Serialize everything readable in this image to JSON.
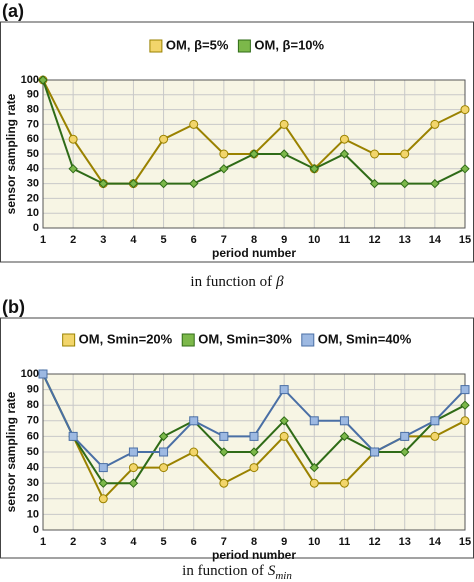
{
  "chart_data": [
    {
      "type": "line",
      "label": "(a)",
      "xlabel": "period number",
      "ylabel": "sensor sampling rate",
      "caption": "in function of",
      "caption_symbol": "β",
      "x": [
        1,
        2,
        3,
        4,
        5,
        6,
        7,
        8,
        9,
        10,
        11,
        12,
        13,
        14,
        15
      ],
      "xlim": [
        1,
        15
      ],
      "xticks": [
        1,
        2,
        3,
        4,
        5,
        6,
        7,
        8,
        9,
        10,
        11,
        12,
        13,
        14,
        15
      ],
      "ylim": [
        0,
        100
      ],
      "yticks": [
        0,
        10,
        20,
        30,
        40,
        50,
        60,
        70,
        80,
        90,
        100
      ],
      "grid": true,
      "series": [
        {
          "name": "OM, β=5%",
          "color": "#f2d56b",
          "marker": "circle",
          "values": [
            100,
            60,
            30,
            30,
            60,
            70,
            50,
            50,
            70,
            40,
            60,
            50,
            50,
            70,
            80
          ]
        },
        {
          "name": "OM, β=10%",
          "color": "#7cb84a",
          "marker": "diamond",
          "values": [
            100,
            40,
            30,
            30,
            30,
            30,
            40,
            50,
            50,
            40,
            50,
            30,
            30,
            30,
            40
          ]
        }
      ]
    },
    {
      "type": "line",
      "label": "(b)",
      "xlabel": "period number",
      "ylabel": "sensor sampling rate",
      "caption": "in function of",
      "caption_symbol": "S",
      "caption_subscript": "min",
      "x": [
        1,
        2,
        3,
        4,
        5,
        6,
        7,
        8,
        9,
        10,
        11,
        12,
        13,
        14,
        15
      ],
      "xlim": [
        1,
        15
      ],
      "xticks": [
        1,
        2,
        3,
        4,
        5,
        6,
        7,
        8,
        9,
        10,
        11,
        12,
        13,
        14,
        15
      ],
      "ylim": [
        0,
        100
      ],
      "yticks": [
        0,
        10,
        20,
        30,
        40,
        50,
        60,
        70,
        80,
        90,
        100
      ],
      "grid": true,
      "series": [
        {
          "name": "OM, Smin=20%",
          "color": "#f2d56b",
          "marker": "circle",
          "values": [
            100,
            60,
            20,
            40,
            40,
            50,
            30,
            40,
            60,
            30,
            30,
            50,
            60,
            60,
            70
          ]
        },
        {
          "name": "OM, Smin=30%",
          "color": "#7cb84a",
          "marker": "diamond",
          "values": [
            100,
            60,
            30,
            30,
            60,
            70,
            50,
            50,
            70,
            40,
            60,
            50,
            50,
            70,
            80
          ]
        },
        {
          "name": "OM, Smin=40%",
          "color": "#9db9e2",
          "marker": "square",
          "values": [
            100,
            60,
            40,
            50,
            50,
            70,
            60,
            60,
            90,
            70,
            70,
            50,
            60,
            70,
            90
          ]
        }
      ]
    }
  ]
}
